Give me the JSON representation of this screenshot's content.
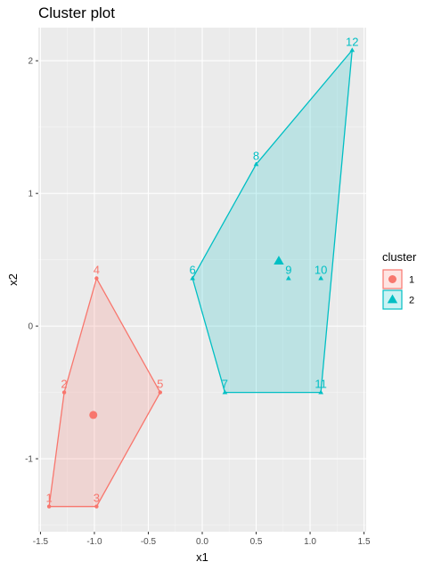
{
  "chart_data": {
    "type": "scatter",
    "title": "Cluster plot",
    "xlabel": "x1",
    "ylabel": "x2",
    "xlim": [
      -1.52,
      1.52
    ],
    "ylim": [
      -1.55,
      2.25
    ],
    "x_ticks": [
      -1.5,
      -1.0,
      -0.5,
      0.0,
      0.5,
      1.0,
      1.5
    ],
    "x_tick_labels": [
      "-1.5",
      "-1.0",
      "-0.5",
      "0.0",
      "0.5",
      "1.0",
      "1.5"
    ],
    "y_ticks": [
      -1,
      0,
      1,
      2
    ],
    "y_tick_labels": [
      "-1",
      "0",
      "1",
      "2"
    ],
    "grid": true,
    "legend": {
      "title": "cluster",
      "position": "right"
    },
    "series": [
      {
        "name": "1",
        "color": "#F8766D",
        "marker": "circle",
        "points": [
          {
            "label": "1",
            "x": -1.42,
            "y": -1.36
          },
          {
            "label": "2",
            "x": -1.28,
            "y": -0.5
          },
          {
            "label": "3",
            "x": -0.98,
            "y": -1.36
          },
          {
            "label": "4",
            "x": -0.98,
            "y": 0.36
          },
          {
            "label": "5",
            "x": -0.39,
            "y": -0.5
          }
        ],
        "hull": [
          "1",
          "2",
          "4",
          "5",
          "3"
        ],
        "centroid": {
          "x": -1.01,
          "y": -0.67
        }
      },
      {
        "name": "2",
        "color": "#00BFC4",
        "marker": "triangle",
        "points": [
          {
            "label": "6",
            "x": -0.09,
            "y": 0.36
          },
          {
            "label": "7",
            "x": 0.21,
            "y": -0.5
          },
          {
            "label": "8",
            "x": 0.5,
            "y": 1.22
          },
          {
            "label": "9",
            "x": 0.8,
            "y": 0.36
          },
          {
            "label": "10",
            "x": 1.1,
            "y": 0.36
          },
          {
            "label": "11",
            "x": 1.1,
            "y": -0.5
          },
          {
            "label": "12",
            "x": 1.39,
            "y": 2.08
          }
        ],
        "hull": [
          "6",
          "8",
          "12",
          "11",
          "7"
        ],
        "centroid": {
          "x": 0.71,
          "y": 0.49
        }
      }
    ]
  }
}
